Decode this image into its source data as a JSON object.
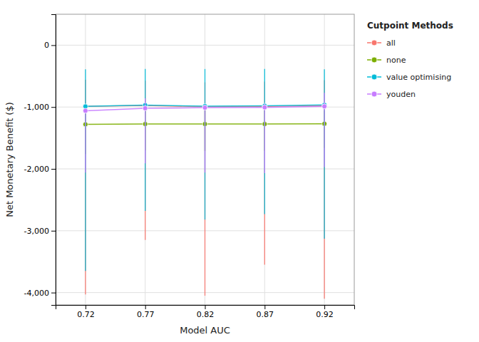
{
  "chart_data": {
    "type": "line",
    "x": [
      0.72,
      0.77,
      0.82,
      0.87,
      0.92
    ],
    "series": [
      {
        "name": "all",
        "color": "#F8766D",
        "marker": "circle",
        "values": [
          -990,
          -975,
          -995,
          -990,
          -980
        ],
        "lower": [
          -4030,
          -3150,
          -4050,
          -3550,
          -4100
        ],
        "upper": [
          -560,
          -575,
          -600,
          -590,
          -565
        ]
      },
      {
        "name": "none",
        "color": "#7CAE00",
        "marker": "circle",
        "values": [
          -1280,
          -1275,
          -1275,
          -1275,
          -1270
        ],
        "lower": [
          -1760,
          -1700,
          -1710,
          -1705,
          -1660
        ],
        "upper": [
          -1060,
          -1050,
          -1055,
          -1058,
          -1062
        ]
      },
      {
        "name": "value optimising",
        "color": "#00BCD8",
        "marker": "circle",
        "values": [
          -990,
          -970,
          -985,
          -980,
          -965
        ],
        "lower": [
          -3650,
          -2680,
          -2820,
          -2730,
          -3130
        ],
        "upper": [
          -390,
          -385,
          -385,
          -385,
          -390
        ]
      },
      {
        "name": "youden",
        "color": "#C77CFF",
        "marker": "circle",
        "values": [
          -1060,
          -1020,
          -1010,
          -1005,
          -990
        ],
        "lower": [
          -2060,
          -1910,
          -2060,
          -2070,
          -1970
        ],
        "upper": [
          -1045,
          -860,
          -990,
          -950,
          -770
        ]
      }
    ],
    "xlabel": "Model AUC",
    "ylabel": "Net Monetary Benefit ($)",
    "legend_title": "Cutpoint Methods",
    "legend": "right",
    "xlim": [
      0.695,
      0.945
    ],
    "xticks": [
      0.72,
      0.77,
      0.82,
      0.87,
      0.92
    ],
    "ylim": [
      -4200,
      500
    ],
    "yticks": [
      {
        "value": -4000,
        "label": "-4,000"
      },
      {
        "value": -3000,
        "label": "-3,000"
      },
      {
        "value": -2000,
        "label": "-2,000"
      },
      {
        "value": -1000,
        "label": "-1,000"
      },
      0
    ],
    "grid": true
  }
}
